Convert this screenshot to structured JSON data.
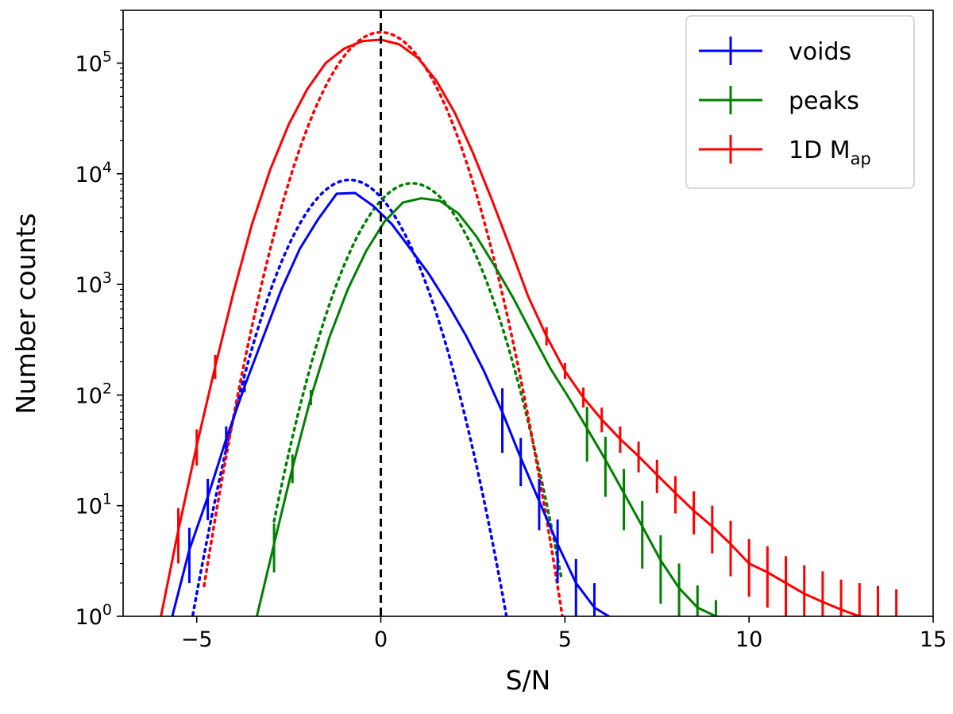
{
  "chart_data": {
    "type": "line",
    "title": "",
    "xlabel": "S/N",
    "ylabel": "Number counts",
    "xlim": [
      -7,
      15
    ],
    "ylim": [
      1,
      300000
    ],
    "yscale": "log",
    "x_ticks": [
      {
        "value": -5,
        "label": "−5"
      },
      {
        "value": 0,
        "label": "0"
      },
      {
        "value": 5,
        "label": "5"
      },
      {
        "value": 10,
        "label": "10"
      },
      {
        "value": 15,
        "label": "15"
      }
    ],
    "y_ticks": [
      {
        "value": 1,
        "base": "10",
        "exp": "0"
      },
      {
        "value": 10,
        "base": "10",
        "exp": "1"
      },
      {
        "value": 100,
        "base": "10",
        "exp": "2"
      },
      {
        "value": 1000,
        "base": "10",
        "exp": "3"
      },
      {
        "value": 10000,
        "base": "10",
        "exp": "4"
      },
      {
        "value": 100000,
        "base": "10",
        "exp": "5"
      }
    ],
    "vline": {
      "x": 0,
      "color": "#000000",
      "style": "dashed"
    },
    "legend_position": "top-right",
    "series": [
      {
        "name": "voids",
        "legend_label": "voids",
        "color": "#0000ff",
        "x": [
          -5.7,
          -5.2,
          -4.7,
          -4.2,
          -3.7,
          -3.2,
          -2.7,
          -2.2,
          -1.7,
          -1.2,
          -0.7,
          -0.2,
          0.3,
          0.8,
          1.3,
          1.8,
          2.3,
          2.8,
          3.3,
          3.8,
          4.3,
          4.8,
          5.3,
          5.8,
          6.3
        ],
        "y": [
          0.9,
          4,
          12,
          40,
          120,
          330,
          900,
          2100,
          3900,
          6600,
          6700,
          5100,
          3500,
          2100,
          1250,
          680,
          350,
          165,
          70,
          27,
          11,
          4.5,
          2,
          1.2,
          0.95
        ],
        "err_low": [
          0,
          2,
          4.6,
          9,
          14,
          0,
          0,
          0,
          0,
          0,
          0,
          0,
          0,
          0,
          0,
          0,
          0,
          0,
          40,
          12,
          5,
          2.5,
          1.2,
          0.7,
          0
        ],
        "err_high": [
          0,
          2.3,
          5.5,
          12,
          16,
          0,
          0,
          0,
          0,
          0,
          0,
          0,
          0,
          0,
          0,
          0,
          0,
          0,
          45,
          14,
          6.5,
          3,
          1.3,
          0.8,
          0
        ]
      },
      {
        "name": "peaks",
        "legend_label": "peaks",
        "color": "#008000",
        "x": [
          -3.4,
          -2.9,
          -2.4,
          -1.9,
          -1.4,
          -0.9,
          -0.4,
          0.1,
          0.6,
          1.1,
          1.6,
          2.1,
          2.6,
          3.1,
          3.6,
          4.1,
          4.6,
          5.1,
          5.6,
          6.1,
          6.6,
          7.1,
          7.6,
          8.1,
          8.6,
          9.1,
          9.6
        ],
        "y": [
          0.9,
          4.5,
          22,
          95,
          330,
          900,
          2000,
          3700,
          5500,
          6000,
          5700,
          4400,
          2700,
          1450,
          750,
          360,
          175,
          95,
          50,
          26,
          13,
          6.5,
          3.2,
          1.8,
          1.2,
          1.0,
          0.95
        ],
        "err_low": [
          0,
          2,
          6,
          14,
          0,
          0,
          0,
          0,
          0,
          0,
          0,
          0,
          0,
          0,
          0,
          0,
          0,
          0,
          25,
          14,
          7,
          3.8,
          1.9,
          1,
          0.6,
          0.3,
          0
        ],
        "err_high": [
          0,
          2.4,
          7,
          16,
          0,
          0,
          0,
          0,
          0,
          0,
          0,
          0,
          0,
          0,
          0,
          0,
          0,
          0,
          28,
          16,
          8.5,
          4.5,
          2.2,
          1.2,
          0.7,
          0.4,
          0
        ]
      },
      {
        "name": "1D Map",
        "legend_label": "1D M",
        "legend_subscript": "ap",
        "color": "#ff0000",
        "x": [
          -6.0,
          -5.5,
          -5.0,
          -4.5,
          -4.0,
          -3.5,
          -3.0,
          -2.5,
          -2.0,
          -1.5,
          -1.0,
          -0.5,
          0.0,
          0.5,
          1.0,
          1.5,
          2.0,
          2.5,
          3.0,
          3.5,
          4.0,
          4.5,
          5.0,
          5.5,
          6.0,
          6.5,
          7.0,
          7.5,
          8.0,
          8.5,
          9.0,
          9.5,
          10.0,
          10.5,
          11.0,
          11.5,
          12.0,
          12.5,
          13.0,
          13.5,
          14.0,
          14.5
        ],
        "y": [
          0.9,
          6,
          35,
          180,
          850,
          3500,
          11000,
          28000,
          58000,
          100000,
          135000,
          158000,
          163000,
          148000,
          112000,
          70000,
          36000,
          15500,
          6000,
          2200,
          780,
          340,
          165,
          95,
          60,
          40,
          28,
          19,
          13,
          9,
          6.5,
          4.5,
          3.0,
          2.5,
          2.0,
          1.6,
          1.35,
          1.15,
          1.0,
          0.98,
          0.95,
          0.9
        ],
        "err_low": [
          0,
          3,
          12,
          40,
          0,
          0,
          0,
          0,
          0,
          0,
          0,
          0,
          0,
          0,
          0,
          0,
          0,
          0,
          0,
          0,
          0,
          60,
          25,
          18,
          14,
          10,
          8,
          6,
          4.5,
          3.5,
          2.8,
          2.2,
          1.5,
          1.3,
          1.1,
          0.9,
          0.8,
          0.7,
          0.6,
          0.6,
          0.55,
          0
        ],
        "err_high": [
          0,
          3.5,
          14,
          50,
          0,
          0,
          0,
          0,
          0,
          0,
          0,
          0,
          0,
          0,
          0,
          0,
          0,
          0,
          0,
          0,
          0,
          70,
          30,
          22,
          17,
          12,
          10,
          7,
          5.5,
          4.5,
          3.5,
          2.8,
          2.0,
          1.8,
          1.5,
          1.3,
          1.2,
          1.0,
          1.0,
          0.9,
          0.8,
          0
        ]
      }
    ],
    "model_curves": [
      {
        "name": "voids-model",
        "color": "#0000ff",
        "style": "dotted",
        "mean": -0.85,
        "sigma": 1.0,
        "amp": 8800,
        "x_range": [
          -5.5,
          3.5
        ]
      },
      {
        "name": "peaks-model",
        "color": "#008000",
        "style": "dotted",
        "mean": 0.85,
        "sigma": 1.0,
        "amp": 8200,
        "x_range": [
          -2.9,
          4.9
        ]
      },
      {
        "name": "1d-map-model",
        "color": "#ff0000",
        "style": "dotted",
        "mean": 0.0,
        "sigma": 1.0,
        "amp": 190000,
        "x_range": [
          -4.8,
          5.1
        ]
      }
    ]
  }
}
